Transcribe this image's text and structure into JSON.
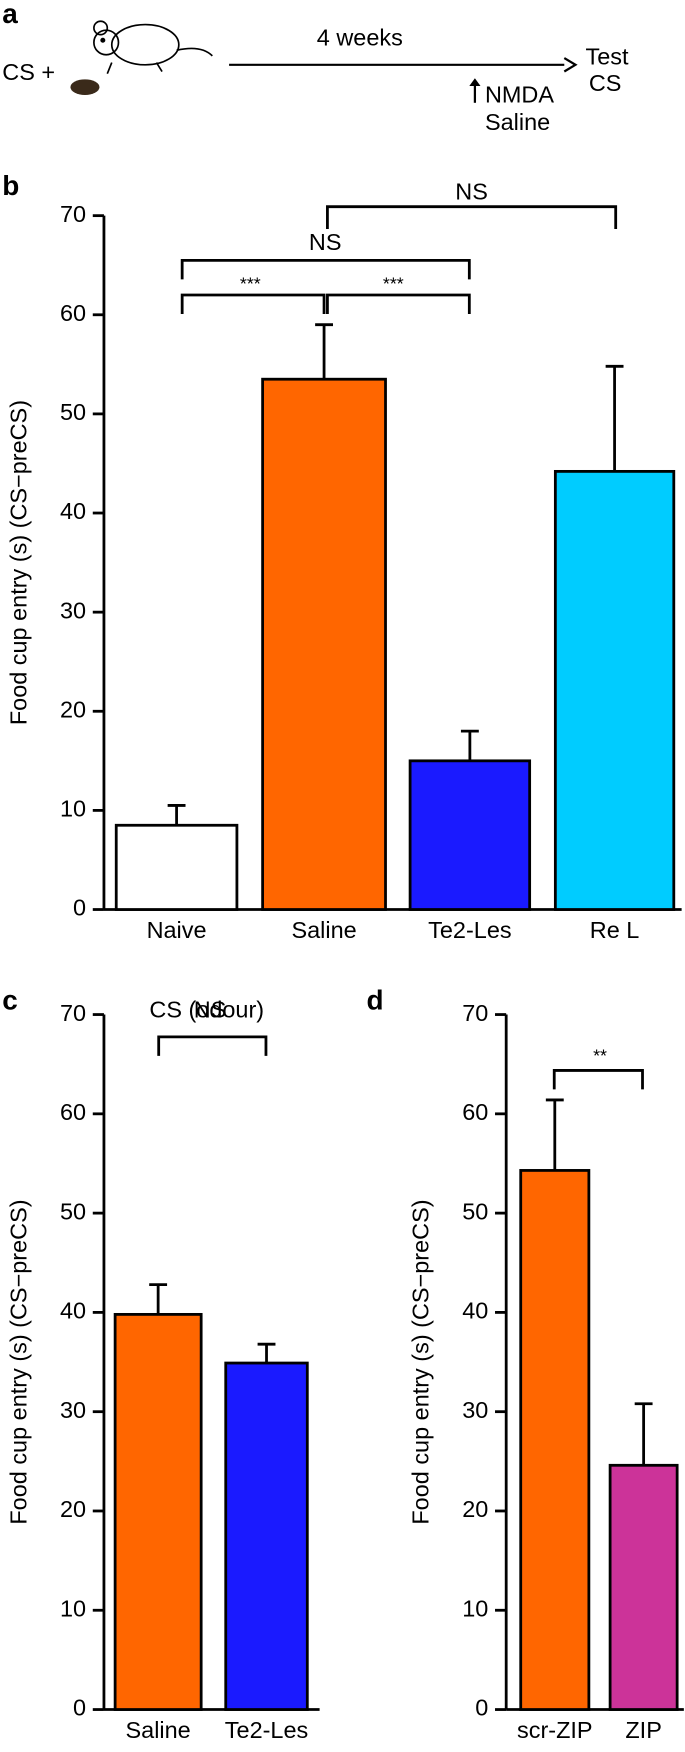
{
  "panel_a": {
    "label": "a",
    "left": "CS +",
    "duration": "4 weeks",
    "test": [
      "Test",
      "CS"
    ],
    "treatments": [
      {
        "text": "NMDA",
        "color": "#1a1aff"
      },
      {
        "text": "Saline",
        "color": "#ff6600"
      }
    ]
  },
  "chart_data": [
    {
      "type": "bar",
      "panel": "b",
      "y_label": "Food cup entry (s) (CS−preCS)",
      "categories": [
        "Naive",
        "Saline",
        "Te2-Les",
        "Re L"
      ],
      "values": [
        8.5,
        53.5,
        15,
        44.2
      ],
      "errors": [
        2,
        5.5,
        3,
        10.6
      ],
      "colors": [
        "#ffffff",
        "#ff6600",
        "#1a1aff",
        "#00ccff"
      ],
      "ylim": [
        0,
        70
      ],
      "yticks": [
        0,
        10,
        20,
        30,
        40,
        50,
        60,
        70
      ],
      "annotations": [
        "***",
        "***",
        "NS",
        "NS"
      ]
    },
    {
      "type": "bar",
      "panel": "c",
      "title": "CS (odour)",
      "y_label": "Food cup entry (s) (CS−preCS)",
      "categories": [
        "Saline",
        "Te2-Les"
      ],
      "values": [
        39.8,
        34.9
      ],
      "errors": [
        3,
        1.9
      ],
      "colors": [
        "#ff6600",
        "#1a1aff"
      ],
      "ylim": [
        0,
        70
      ],
      "yticks": [
        0,
        10,
        20,
        30,
        40,
        50,
        60,
        70
      ],
      "annotations": [
        "NS"
      ]
    },
    {
      "type": "bar",
      "panel": "d",
      "y_label": "Food cup entry (s) (CS−preCS)",
      "categories": [
        "scr-ZIP",
        "ZIP"
      ],
      "values": [
        54.3,
        24.6
      ],
      "errors": [
        7.1,
        6.2
      ],
      "colors": [
        "#ff6600",
        "#cc3399"
      ],
      "ylim": [
        0,
        70
      ],
      "yticks": [
        0,
        10,
        20,
        30,
        40,
        50,
        60,
        70
      ],
      "annotations": [
        "**"
      ]
    }
  ]
}
